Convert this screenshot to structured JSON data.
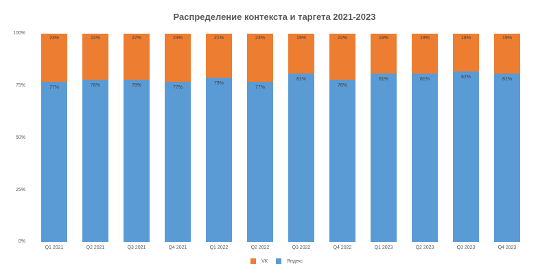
{
  "chart_data": {
    "type": "bar",
    "stacked": true,
    "percent_stacked": true,
    "title": "Распределение контекста и таргета 2021-2023",
    "xlabel": "",
    "ylabel": "",
    "ylim": [
      0,
      100
    ],
    "yticks": [
      "0%",
      "25%",
      "50%",
      "75%",
      "100%"
    ],
    "grid": false,
    "legend_position": "bottom",
    "categories": [
      "Q1 2021",
      "Q2 2021",
      "Q3 2021",
      "Q4 2021",
      "Q1 2022",
      "Q2 2022",
      "Q3 2022",
      "Q4 2022",
      "Q1 2023",
      "Q2 2023",
      "Q3 2023",
      "Q4 2023"
    ],
    "series": [
      {
        "name": "Яндекс",
        "color": "#5B9BD5",
        "values": [
          77,
          78,
          78,
          77,
          79,
          77,
          81,
          78,
          81,
          81,
          82,
          81
        ]
      },
      {
        "name": "VK",
        "color": "#ED7D31",
        "values": [
          23,
          22,
          22,
          23,
          21,
          23,
          19,
          22,
          19,
          19,
          18,
          19
        ]
      }
    ]
  },
  "legend": {
    "items": [
      {
        "label": "VK",
        "color": "#ED7D31"
      },
      {
        "label": "Яндекс",
        "color": "#5B9BD5"
      }
    ]
  }
}
